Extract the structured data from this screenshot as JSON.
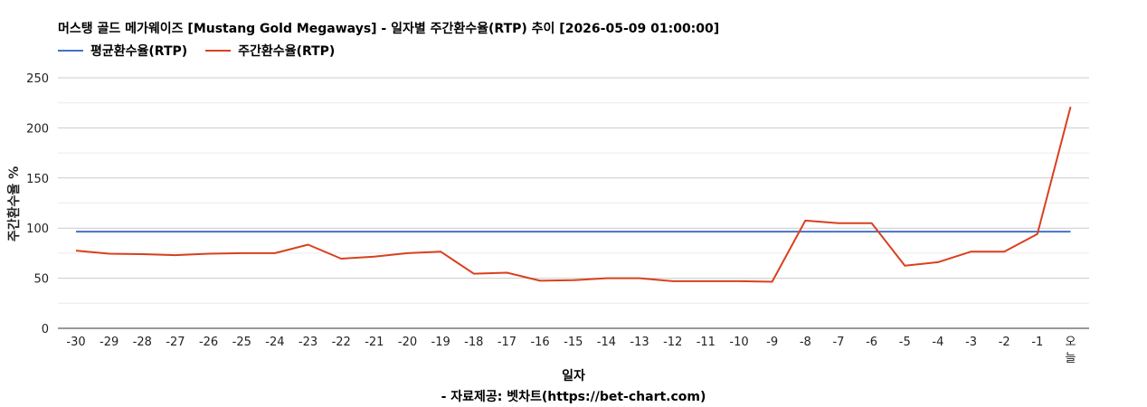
{
  "chart_data": {
    "type": "line",
    "title": "머스탱 골드 메가웨이즈 [Mustang Gold Megaways] - 일자별 주간환수율(RTP) 추이 [2026-05-09 01:00:00]",
    "xlabel": "일자",
    "ylabel": "주간환수율 %",
    "source": "- 자료제공: 벳차트(https://bet-chart.com)",
    "ylim": [
      0,
      250
    ],
    "yticks": [
      0,
      50,
      100,
      150,
      200,
      250
    ],
    "grid": true,
    "legend_position": "top-left",
    "categories": [
      "-30",
      "-29",
      "-28",
      "-27",
      "-26",
      "-25",
      "-24",
      "-23",
      "-22",
      "-21",
      "-20",
      "-19",
      "-18",
      "-17",
      "-16",
      "-15",
      "-14",
      "-13",
      "-12",
      "-11",
      "-10",
      "-9",
      "-8",
      "-7",
      "-6",
      "-5",
      "-4",
      "-3",
      "-2",
      "-1",
      "오늘"
    ],
    "series": [
      {
        "name": "평균환수율(RTP)",
        "color": "#4472c4",
        "values": [
          96.5,
          96.5,
          96.5,
          96.5,
          96.5,
          96.5,
          96.5,
          96.5,
          96.5,
          96.5,
          96.5,
          96.5,
          96.5,
          96.5,
          96.5,
          96.5,
          96.5,
          96.5,
          96.5,
          96.5,
          96.5,
          96.5,
          96.5,
          96.5,
          96.5,
          96.5,
          96.5,
          96.5,
          96.5,
          96.5,
          96.5
        ]
      },
      {
        "name": "주간환수율(RTP)",
        "color": "#d9401e",
        "values": [
          77.5,
          74.5,
          74,
          73,
          74.5,
          75,
          75,
          83.5,
          69.5,
          71.5,
          75,
          76.5,
          54.5,
          55.5,
          47.5,
          48,
          50,
          50,
          47,
          47,
          47,
          46.5,
          107.5,
          105,
          105,
          62.5,
          66,
          76.5,
          76.5,
          94,
          221
        ]
      }
    ]
  }
}
